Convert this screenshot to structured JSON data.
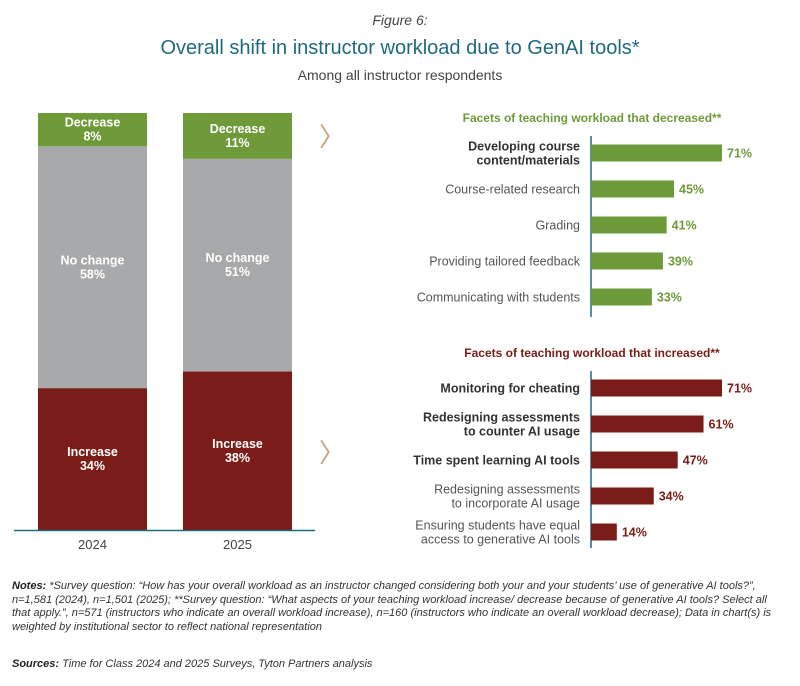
{
  "header": {
    "figure_label": "Figure 6:",
    "title": "Overall shift in instructor workload due to GenAI tools*",
    "subtitle": "Among all instructor respondents"
  },
  "chart_data": [
    {
      "type": "bar",
      "stacked": true,
      "categories": [
        "2024",
        "2025"
      ],
      "series": [
        {
          "name": "Increase",
          "values": [
            34,
            38
          ],
          "color": "#7a1c17"
        },
        {
          "name": "No change",
          "values": [
            58,
            51
          ],
          "color": "#a8a9ab"
        },
        {
          "name": "Decrease",
          "values": [
            8,
            11
          ],
          "color": "#6f9a3a"
        }
      ],
      "ylim": [
        0,
        100
      ],
      "value_labels": [
        {
          "category": "2024",
          "series": "Decrease",
          "name": "Decrease",
          "value": "8%"
        },
        {
          "category": "2024",
          "series": "No change",
          "name": "No change",
          "value": "58%"
        },
        {
          "category": "2024",
          "series": "Increase",
          "name": "Increase",
          "value": "34%"
        },
        {
          "category": "2025",
          "series": "Decrease",
          "name": "Decrease",
          "value": "11%"
        },
        {
          "category": "2025",
          "series": "No change",
          "name": "No change",
          "value": "51%"
        },
        {
          "category": "2025",
          "series": "Increase",
          "name": "Increase",
          "value": "38%"
        }
      ],
      "arrow_glyph": "〉",
      "arrow_color": "#c9a27a"
    },
    {
      "type": "bar",
      "orientation": "horizontal",
      "title": "Facets of teaching workload that decreased**",
      "color": "#6f9a3a",
      "xlim": [
        0,
        100
      ],
      "categories": [
        "Developing course content/materials",
        "Course-related research",
        "Grading",
        "Providing tailored feedback",
        "Communicating with students"
      ],
      "label_lines": [
        [
          "Developing course",
          "content/materials"
        ],
        [
          "Course-related research"
        ],
        [
          "Grading"
        ],
        [
          "Providing tailored feedback"
        ],
        [
          "Communicating with students"
        ]
      ],
      "bold": [
        true,
        false,
        false,
        false,
        false
      ],
      "values": [
        71,
        45,
        41,
        39,
        33
      ],
      "value_labels": [
        "71%",
        "45%",
        "41%",
        "39%",
        "33%"
      ]
    },
    {
      "type": "bar",
      "orientation": "horizontal",
      "title": "Facets of teaching workload that increased**",
      "color": "#7a1c17",
      "xlim": [
        0,
        100
      ],
      "categories": [
        "Monitoring for cheating",
        "Redesigning assessments to counter AI usage",
        "Time spent learning AI tools",
        "Redesigning assessments to incorporate AI usage",
        "Ensuring students have equal access to generative AI tools"
      ],
      "label_lines": [
        [
          "Monitoring for cheating"
        ],
        [
          "Redesigning assessments",
          "to counter AI usage"
        ],
        [
          "Time spent learning AI tools"
        ],
        [
          "Redesigning assessments",
          "to incorporate AI usage"
        ],
        [
          "Ensuring students have equal",
          "access to generative AI tools"
        ]
      ],
      "bold": [
        true,
        true,
        true,
        false,
        false
      ],
      "values": [
        71,
        61,
        47,
        34,
        14
      ],
      "value_labels": [
        "71%",
        "61%",
        "47%",
        "34%",
        "14%"
      ]
    }
  ],
  "notes": {
    "label": "Notes:",
    "text": "*Survey question: “How has your overall workload as an instructor changed considering both your and your students’ use of generative AI tools?”, n=1,581 (2024), n=1,501 (2025); **Survey question: “What aspects of your teaching workload increase/ decrease because of generative AI tools? Select all that apply.”, n=571 (instructors who indicate an overall workload increase), n=160 (instructors who indicate an overall workload decrease); Data in chart(s) is weighted by institutional sector to reflect national representation"
  },
  "sources": {
    "label": "Sources:",
    "text": "Time for Class 2024 and 2025 Surveys, Tyton Partners analysis"
  }
}
